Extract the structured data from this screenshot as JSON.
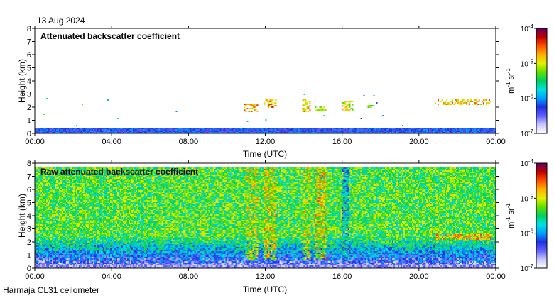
{
  "date_label": "13 Aug 2024",
  "footer_label": "Harmaja CL31 ceilometer",
  "colors": {
    "cmap": [
      "#ffffff",
      "#c8c8ff",
      "#6060ff",
      "#2030e0",
      "#00a0ff",
      "#00e0e0",
      "#00d060",
      "#60e000",
      "#e0f000",
      "#ffb000",
      "#ff5000",
      "#c00000",
      "#600060"
    ]
  },
  "chart_data": [
    {
      "type": "heatmap",
      "title": "Attenuated backscatter coefficient",
      "xlabel": "Time (UTC)",
      "ylabel": "Height (km)",
      "xlim": [
        0,
        24
      ],
      "ylim": [
        0,
        8
      ],
      "x_ticks": [
        "00:00",
        "04:00",
        "08:00",
        "12:00",
        "16:00",
        "20:00",
        "00:00"
      ],
      "y_ticks": [
        "0",
        "1",
        "2",
        "3",
        "4",
        "5",
        "6",
        "7",
        "8"
      ],
      "colorbar": {
        "scale": "log",
        "range": [
          1e-07,
          0.0001
        ],
        "tick_base": "10",
        "tick_exponents": [
          "-7",
          "-6",
          "-5",
          "-4"
        ],
        "label_parts": [
          "m",
          "-1",
          " sr",
          "-1"
        ]
      },
      "boundary_layer_top_km": 0.4,
      "cloud_layers": [
        {
          "t_start": 10.9,
          "t_end": 11.6,
          "h_min": 1.6,
          "h_max": 2.3,
          "intensity": 0.88
        },
        {
          "t_start": 11.9,
          "t_end": 12.6,
          "h_min": 2.0,
          "h_max": 2.6,
          "intensity": 0.9
        },
        {
          "t_start": 13.9,
          "t_end": 14.4,
          "h_min": 1.6,
          "h_max": 2.6,
          "intensity": 0.85
        },
        {
          "t_start": 14.6,
          "t_end": 15.2,
          "h_min": 1.7,
          "h_max": 2.0,
          "intensity": 0.8
        },
        {
          "t_start": 16.0,
          "t_end": 16.6,
          "h_min": 1.7,
          "h_max": 2.5,
          "intensity": 0.8
        },
        {
          "t_start": 17.3,
          "t_end": 17.7,
          "h_min": 1.9,
          "h_max": 2.2,
          "intensity": 0.7
        },
        {
          "t_start": 20.8,
          "t_end": 23.8,
          "h_min": 2.2,
          "h_max": 2.6,
          "intensity": 0.85
        }
      ]
    },
    {
      "type": "heatmap",
      "title": "Raw attenuated backscatter coefficient",
      "xlabel": "Time (UTC)",
      "ylabel": "Height (km)",
      "xlim": [
        0,
        24
      ],
      "ylim": [
        0,
        8
      ],
      "x_ticks": [
        "00:00",
        "04:00",
        "08:00",
        "12:00",
        "16:00",
        "20:00",
        "00:00"
      ],
      "y_ticks": [
        "0",
        "1",
        "2",
        "3",
        "4",
        "5",
        "6",
        "7",
        "8"
      ],
      "colorbar": {
        "scale": "log",
        "range": [
          1e-07,
          0.0001
        ],
        "tick_base": "10",
        "tick_exponents": [
          "-7",
          "-6",
          "-5",
          "-4"
        ],
        "label_parts": [
          "m",
          "-1",
          " sr",
          "-1"
        ]
      },
      "data_top_km": 7.7,
      "precip_columns": [
        {
          "t_start": 11.0,
          "t_end": 11.6,
          "intensity": 0.8
        },
        {
          "t_start": 11.9,
          "t_end": 12.6,
          "intensity": 0.85
        },
        {
          "t_start": 13.9,
          "t_end": 14.4,
          "intensity": 0.8
        },
        {
          "t_start": 14.6,
          "t_end": 15.2,
          "intensity": 0.85
        },
        {
          "t_start": 16.0,
          "t_end": 16.4,
          "intensity": 0.55
        }
      ],
      "cloud_layers": [
        {
          "t_start": 20.8,
          "t_end": 23.8,
          "h_min": 2.2,
          "h_max": 2.6,
          "intensity": 0.85
        }
      ]
    }
  ]
}
